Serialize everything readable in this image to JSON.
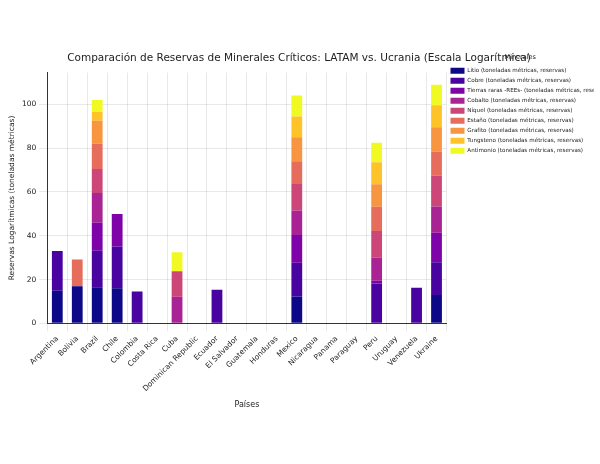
{
  "chart_data": {
    "type": "bar",
    "title": "Comparación de Reservas de Minerales Críticos: LATAM vs. Ucrania (Escala Logarítmica)",
    "x_label": "Países",
    "y_label": "Reservas Logarítmicas (toneladas métricas)",
    "legend_title": "Minerales",
    "legend": "right",
    "stacked": true,
    "grid": true,
    "categories": [
      "Argentina",
      "Bolivia",
      "Brazil",
      "Chile",
      "Colombia",
      "Costa Rica",
      "Cuba",
      "Dominican Republic",
      "Ecuador",
      "El Salvador",
      "Guatemala",
      "Honduras",
      "Mexico",
      "Nicaragua",
      "Panama",
      "Paraguay",
      "Peru",
      "Uruguay",
      "Venezuela",
      "Ukraine"
    ],
    "series": [
      {
        "name": "Litio (toneladas métricas, reservas)",
        "color": "#0d0887",
        "values": [
          14.9,
          16.9,
          16.5,
          16.0,
          0,
          0,
          0,
          0,
          0,
          0,
          0,
          0,
          12.3,
          0,
          0,
          0,
          0,
          0,
          0,
          13.0
        ]
      },
      {
        "name": "Cobre (toneladas métricas, reservas)",
        "color": "#4903a0",
        "values": [
          18.1,
          0,
          16.7,
          19.1,
          14.6,
          0,
          0,
          0,
          15.3,
          0,
          0,
          0,
          15.4,
          0,
          0,
          0,
          18.2,
          0,
          16.3,
          14.9
        ]
      },
      {
        "name": "Tierras raras -REEs- (toneladas métricas, reservas)",
        "color": "#7e03a8",
        "values": [
          0,
          0,
          12.8,
          14.8,
          0,
          0,
          0,
          0,
          0,
          0,
          0,
          0,
          12.6,
          0,
          0,
          0,
          1.2,
          0,
          0,
          13.5
        ]
      },
      {
        "name": "Cobalto (toneladas métricas, reservas)",
        "color": "#a92395",
        "values": [
          0,
          0,
          13.5,
          0,
          0,
          0,
          12.1,
          0,
          0,
          0,
          0,
          0,
          11.2,
          0,
          0,
          0,
          10.5,
          0,
          0,
          12.0
        ]
      },
      {
        "name": "Níquel (toneladas métricas, reservas)",
        "color": "#cc4778",
        "values": [
          0,
          0,
          11.0,
          0,
          0,
          0,
          11.7,
          0,
          0,
          0,
          0,
          0,
          12.5,
          0,
          0,
          0,
          12.3,
          0,
          0,
          14.0
        ]
      },
      {
        "name": "Estaño (toneladas métricas, reservas)",
        "color": "#e66c5c",
        "values": [
          0,
          12.3,
          11.5,
          0,
          0,
          0,
          0,
          0,
          0,
          0,
          0,
          0,
          10.0,
          0,
          0,
          0,
          11.1,
          0,
          0,
          11.0
        ]
      },
      {
        "name": "Grafito (toneladas métricas, reservas)",
        "color": "#f89540",
        "values": [
          0,
          0,
          10.5,
          0,
          0,
          0,
          0,
          0,
          0,
          0,
          0,
          0,
          11.0,
          0,
          0,
          0,
          10.2,
          0,
          0,
          11.2
        ]
      },
      {
        "name": "Tungsteno (toneladas métricas, reservas)",
        "color": "#fdc328",
        "values": [
          0,
          0,
          4.0,
          0,
          0,
          0,
          0,
          0,
          0,
          0,
          0,
          0,
          9.5,
          0,
          0,
          0,
          10.1,
          0,
          0,
          10.0
        ]
      },
      {
        "name": "Antimonio (toneladas métricas, reservas)",
        "color": "#f0f921",
        "values": [
          0,
          0,
          5.5,
          0,
          0,
          0,
          8.7,
          0,
          0,
          0,
          0,
          0,
          9.5,
          0,
          0,
          0,
          8.9,
          0,
          0,
          9.4
        ]
      }
    ],
    "ylim": [
      0,
      114.5
    ],
    "yticks": [
      0,
      20,
      40,
      60,
      80,
      100
    ]
  }
}
